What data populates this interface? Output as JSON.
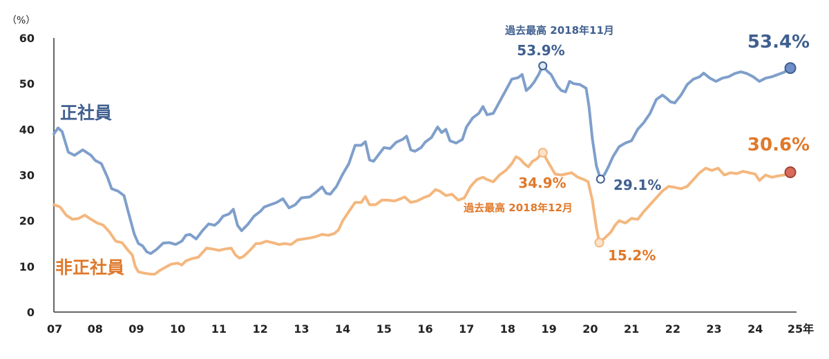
{
  "chart_data": {
    "type": "line",
    "y_unit": "（%）",
    "ylim": [
      0,
      60
    ],
    "y_ticks": [
      "0",
      "10",
      "20",
      "30",
      "40",
      "50",
      "60"
    ],
    "x_tick_labels": [
      "07",
      "08",
      "09",
      "10",
      "11",
      "12",
      "13",
      "14",
      "15",
      "16",
      "17",
      "18",
      "19",
      "20",
      "21",
      "22",
      "23",
      "24",
      "25年"
    ],
    "x_range": [
      2007.0,
      2025.0
    ],
    "grid": false,
    "series": [
      {
        "name": "正社員",
        "color": "#7F9FCB",
        "label_color": "#3F5F8F",
        "points": [
          [
            2007.0,
            39
          ],
          [
            2007.1,
            40.3
          ],
          [
            2007.2,
            39.5
          ],
          [
            2007.35,
            35
          ],
          [
            2007.5,
            34.3
          ],
          [
            2007.7,
            35.5
          ],
          [
            2007.9,
            34.3
          ],
          [
            2008.0,
            33.2
          ],
          [
            2008.15,
            32.5
          ],
          [
            2008.3,
            29.5
          ],
          [
            2008.4,
            27
          ],
          [
            2008.55,
            26.5
          ],
          [
            2008.7,
            25.5
          ],
          [
            2008.8,
            22
          ],
          [
            2008.95,
            17
          ],
          [
            2009.05,
            15
          ],
          [
            2009.15,
            14.5
          ],
          [
            2009.25,
            13.2
          ],
          [
            2009.35,
            12.8
          ],
          [
            2009.5,
            13.8
          ],
          [
            2009.65,
            15.1
          ],
          [
            2009.8,
            15.2
          ],
          [
            2009.95,
            14.8
          ],
          [
            2010.1,
            15.5
          ],
          [
            2010.2,
            16.8
          ],
          [
            2010.3,
            17
          ],
          [
            2010.45,
            16
          ],
          [
            2010.6,
            17.8
          ],
          [
            2010.75,
            19.3
          ],
          [
            2010.9,
            19
          ],
          [
            2011.0,
            19.8
          ],
          [
            2011.1,
            21
          ],
          [
            2011.25,
            21.5
          ],
          [
            2011.35,
            22.5
          ],
          [
            2011.45,
            19
          ],
          [
            2011.55,
            17.8
          ],
          [
            2011.7,
            19.2
          ],
          [
            2011.85,
            21
          ],
          [
            2012.0,
            22
          ],
          [
            2012.1,
            23
          ],
          [
            2012.25,
            23.5
          ],
          [
            2012.4,
            24
          ],
          [
            2012.55,
            24.8
          ],
          [
            2012.7,
            22.8
          ],
          [
            2012.85,
            23.5
          ],
          [
            2013.0,
            25
          ],
          [
            2013.2,
            25.2
          ],
          [
            2013.35,
            26.2
          ],
          [
            2013.5,
            27.4
          ],
          [
            2013.6,
            26
          ],
          [
            2013.7,
            25.8
          ],
          [
            2013.85,
            27.5
          ],
          [
            2014.0,
            30.2
          ],
          [
            2014.15,
            32.5
          ],
          [
            2014.3,
            36.5
          ],
          [
            2014.45,
            36.5
          ],
          [
            2014.55,
            37.3
          ],
          [
            2014.65,
            33.3
          ],
          [
            2014.75,
            33
          ],
          [
            2014.9,
            34.8
          ],
          [
            2015.0,
            36
          ],
          [
            2015.15,
            35.8
          ],
          [
            2015.3,
            37.2
          ],
          [
            2015.45,
            37.8
          ],
          [
            2015.55,
            38.5
          ],
          [
            2015.65,
            35.5
          ],
          [
            2015.75,
            35.2
          ],
          [
            2015.9,
            36
          ],
          [
            2016.0,
            37.2
          ],
          [
            2016.15,
            38.2
          ],
          [
            2016.3,
            40.5
          ],
          [
            2016.4,
            39.3
          ],
          [
            2016.5,
            40
          ],
          [
            2016.6,
            37.5
          ],
          [
            2016.75,
            37
          ],
          [
            2016.9,
            37.8
          ],
          [
            2017.0,
            40.5
          ],
          [
            2017.15,
            42.5
          ],
          [
            2017.3,
            43.5
          ],
          [
            2017.4,
            45
          ],
          [
            2017.5,
            43.2
          ],
          [
            2017.65,
            43.5
          ],
          [
            2017.8,
            46
          ],
          [
            2017.95,
            48.5
          ],
          [
            2018.1,
            51
          ],
          [
            2018.25,
            51.3
          ],
          [
            2018.35,
            52
          ],
          [
            2018.45,
            48.5
          ],
          [
            2018.55,
            49.3
          ],
          [
            2018.65,
            50.5
          ],
          [
            2018.75,
            52
          ],
          [
            2018.85,
            53.9
          ],
          [
            2018.95,
            52.8
          ],
          [
            2019.05,
            52
          ],
          [
            2019.2,
            49.5
          ],
          [
            2019.3,
            48.5
          ],
          [
            2019.4,
            48.2
          ],
          [
            2019.5,
            50.5
          ],
          [
            2019.6,
            50
          ],
          [
            2019.75,
            49.8
          ],
          [
            2019.9,
            49
          ],
          [
            2019.97,
            45
          ],
          [
            2020.05,
            38
          ],
          [
            2020.15,
            32
          ],
          [
            2020.25,
            29.1
          ],
          [
            2020.35,
            30.2
          ],
          [
            2020.45,
            32
          ],
          [
            2020.55,
            34
          ],
          [
            2020.7,
            36.2
          ],
          [
            2020.85,
            37
          ],
          [
            2021.0,
            37.5
          ],
          [
            2021.15,
            40
          ],
          [
            2021.3,
            41.5
          ],
          [
            2021.45,
            43.5
          ],
          [
            2021.6,
            46.5
          ],
          [
            2021.75,
            47.5
          ],
          [
            2021.85,
            46.8
          ],
          [
            2021.95,
            46
          ],
          [
            2022.05,
            45.8
          ],
          [
            2022.2,
            47.5
          ],
          [
            2022.35,
            49.8
          ],
          [
            2022.5,
            51
          ],
          [
            2022.65,
            51.5
          ],
          [
            2022.75,
            52.3
          ],
          [
            2022.9,
            51.2
          ],
          [
            2023.05,
            50.5
          ],
          [
            2023.2,
            51.2
          ],
          [
            2023.35,
            51.5
          ],
          [
            2023.5,
            52.2
          ],
          [
            2023.65,
            52.6
          ],
          [
            2023.8,
            52.2
          ],
          [
            2023.95,
            51.5
          ],
          [
            2024.1,
            50.5
          ],
          [
            2024.25,
            51.2
          ],
          [
            2024.4,
            51.5
          ],
          [
            2024.55,
            52
          ],
          [
            2024.7,
            52.5
          ],
          [
            2024.85,
            53.4
          ]
        ]
      },
      {
        "name": "非正社員",
        "color": "#F4B77E",
        "label_color": "#E0782A",
        "points": [
          [
            2007.0,
            23.5
          ],
          [
            2007.15,
            23
          ],
          [
            2007.3,
            21.2
          ],
          [
            2007.45,
            20.3
          ],
          [
            2007.6,
            20.5
          ],
          [
            2007.75,
            21.2
          ],
          [
            2007.9,
            20.3
          ],
          [
            2008.05,
            19.5
          ],
          [
            2008.2,
            19
          ],
          [
            2008.35,
            17.5
          ],
          [
            2008.5,
            15.5
          ],
          [
            2008.65,
            15.2
          ],
          [
            2008.8,
            13.5
          ],
          [
            2008.9,
            12.5
          ],
          [
            2008.97,
            10
          ],
          [
            2009.05,
            8.8
          ],
          [
            2009.2,
            8.5
          ],
          [
            2009.35,
            8.3
          ],
          [
            2009.45,
            8.3
          ],
          [
            2009.55,
            9
          ],
          [
            2009.7,
            9.8
          ],
          [
            2009.85,
            10.5
          ],
          [
            2010.0,
            10.7
          ],
          [
            2010.1,
            10.3
          ],
          [
            2010.2,
            11.2
          ],
          [
            2010.35,
            11.7
          ],
          [
            2010.5,
            12
          ],
          [
            2010.6,
            13
          ],
          [
            2010.7,
            14
          ],
          [
            2010.85,
            13.8
          ],
          [
            2011.0,
            13.5
          ],
          [
            2011.15,
            13.8
          ],
          [
            2011.3,
            14
          ],
          [
            2011.4,
            12.5
          ],
          [
            2011.5,
            11.8
          ],
          [
            2011.6,
            12.2
          ],
          [
            2011.75,
            13.5
          ],
          [
            2011.9,
            15
          ],
          [
            2012.0,
            15
          ],
          [
            2012.15,
            15.5
          ],
          [
            2012.3,
            15.2
          ],
          [
            2012.45,
            14.8
          ],
          [
            2012.6,
            15
          ],
          [
            2012.75,
            14.8
          ],
          [
            2012.9,
            15.8
          ],
          [
            2013.05,
            16
          ],
          [
            2013.2,
            16.2
          ],
          [
            2013.35,
            16.5
          ],
          [
            2013.5,
            17
          ],
          [
            2013.65,
            16.8
          ],
          [
            2013.8,
            17.2
          ],
          [
            2013.9,
            18
          ],
          [
            2014.0,
            20
          ],
          [
            2014.15,
            22
          ],
          [
            2014.3,
            24
          ],
          [
            2014.45,
            24
          ],
          [
            2014.55,
            25.3
          ],
          [
            2014.65,
            23.5
          ],
          [
            2014.8,
            23.5
          ],
          [
            2014.95,
            24.5
          ],
          [
            2015.1,
            24.5
          ],
          [
            2015.25,
            24.3
          ],
          [
            2015.4,
            24.8
          ],
          [
            2015.5,
            25.2
          ],
          [
            2015.65,
            24
          ],
          [
            2015.8,
            24.3
          ],
          [
            2015.95,
            25
          ],
          [
            2016.1,
            25.5
          ],
          [
            2016.25,
            26.8
          ],
          [
            2016.35,
            26.5
          ],
          [
            2016.5,
            25.5
          ],
          [
            2016.65,
            25.8
          ],
          [
            2016.8,
            24.5
          ],
          [
            2016.95,
            25
          ],
          [
            2017.1,
            27.5
          ],
          [
            2017.25,
            29
          ],
          [
            2017.4,
            29.5
          ],
          [
            2017.5,
            29
          ],
          [
            2017.65,
            28.5
          ],
          [
            2017.8,
            30
          ],
          [
            2017.95,
            31
          ],
          [
            2018.1,
            32.5
          ],
          [
            2018.2,
            34
          ],
          [
            2018.3,
            33.5
          ],
          [
            2018.4,
            32.5
          ],
          [
            2018.5,
            31.8
          ],
          [
            2018.6,
            33
          ],
          [
            2018.7,
            33.5
          ],
          [
            2018.85,
            34.9
          ],
          [
            2019.0,
            32.5
          ],
          [
            2019.15,
            30.2
          ],
          [
            2019.3,
            30
          ],
          [
            2019.45,
            30.3
          ],
          [
            2019.55,
            30.5
          ],
          [
            2019.7,
            29.5
          ],
          [
            2019.85,
            29
          ],
          [
            2019.95,
            28.5
          ],
          [
            2020.05,
            24.5
          ],
          [
            2020.15,
            18.5
          ],
          [
            2020.22,
            15.2
          ],
          [
            2020.35,
            16.2
          ],
          [
            2020.5,
            17.5
          ],
          [
            2020.6,
            19
          ],
          [
            2020.7,
            20
          ],
          [
            2020.85,
            19.5
          ],
          [
            2021.0,
            20.5
          ],
          [
            2021.15,
            20.3
          ],
          [
            2021.3,
            22
          ],
          [
            2021.45,
            23.5
          ],
          [
            2021.6,
            25
          ],
          [
            2021.75,
            26.5
          ],
          [
            2021.9,
            27.5
          ],
          [
            2022.05,
            27.3
          ],
          [
            2022.2,
            27
          ],
          [
            2022.35,
            27.5
          ],
          [
            2022.5,
            29
          ],
          [
            2022.65,
            30.5
          ],
          [
            2022.8,
            31.5
          ],
          [
            2022.95,
            31
          ],
          [
            2023.1,
            31.5
          ],
          [
            2023.25,
            30
          ],
          [
            2023.4,
            30.5
          ],
          [
            2023.55,
            30.3
          ],
          [
            2023.7,
            30.8
          ],
          [
            2023.85,
            30.5
          ],
          [
            2024.0,
            30.2
          ],
          [
            2024.1,
            28.8
          ],
          [
            2024.25,
            30
          ],
          [
            2024.4,
            29.5
          ],
          [
            2024.55,
            29.8
          ],
          [
            2024.7,
            30
          ],
          [
            2024.85,
            30.6
          ]
        ]
      }
    ],
    "annotations": {
      "regular_peak_title": "過去最高 2018年11月",
      "regular_peak_value": "53.9%",
      "regular_trough_value": "29.1%",
      "regular_latest_value": "53.4%",
      "nonregular_peak_title": "過去最高 2018年12月",
      "nonregular_peak_value": "34.9%",
      "nonregular_trough_value": "15.2%",
      "nonregular_latest_value": "30.6%"
    },
    "markers": {
      "regular_peak": [
        2018.85,
        53.9
      ],
      "regular_trough": [
        2020.25,
        29.1
      ],
      "regular_latest": [
        2024.85,
        53.4
      ],
      "nonregular_peak": [
        2018.85,
        34.9
      ],
      "nonregular_trough": [
        2020.22,
        15.2
      ],
      "nonregular_latest": [
        2024.85,
        30.6
      ]
    },
    "colors": {
      "latest_regular_fill": "#6E8EC8",
      "latest_nonregular_fill": "#D96B5A",
      "peak_marker_fill": "#DCE8F6",
      "axis": "#333333"
    }
  }
}
